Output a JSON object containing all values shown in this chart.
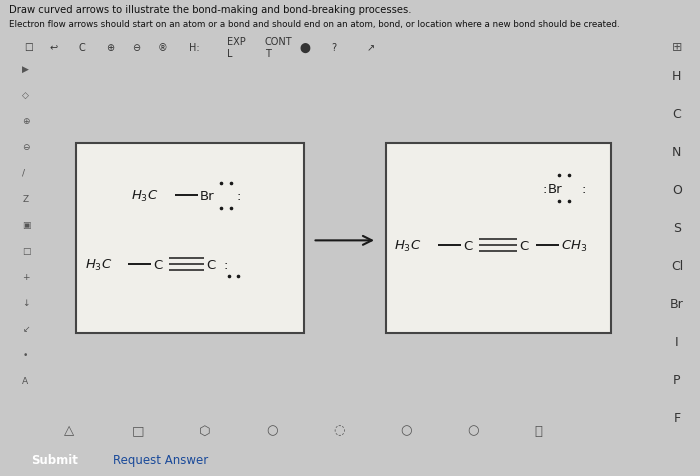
{
  "title_line1": "Draw curved arrows to illustrate the bond-making and bond-breaking processes.",
  "title_line2": "Electron flow arrows should start on an atom or a bond and should end on an atom, bond, or location where a new bond should be created.",
  "bg_outer": "#c8c8c8",
  "bg_main_panel": "#dcdcdc",
  "bg_canvas": "#f0efea",
  "box_edge": "#444444",
  "text_color": "#222222",
  "chem_color": "#1a1a1a",
  "arrow_color": "#222222",
  "sidebar_items": [
    "H",
    "C",
    "N",
    "O",
    "S",
    "Cl",
    "Br",
    "I",
    "P",
    "F"
  ],
  "button_submit_bg": "#1a4a9a",
  "button_submit_text": "Submit",
  "button_req_text": "Request Answer",
  "toolbar_icons": [
    "□",
    "↩",
    "C",
    "⊕",
    "⊖",
    "®",
    "H:",
    "EXP",
    "CONT",
    "●",
    "?",
    "↗"
  ],
  "left_tools": [
    "▶",
    "◇",
    "⊕",
    "⊖",
    "/",
    "Z",
    "▣",
    "□",
    "+",
    "↓",
    "↙",
    "•",
    "A"
  ],
  "bottom_shapes": [
    "△",
    "□",
    "⬡",
    "○",
    "◌",
    "○",
    "○",
    "⛰"
  ]
}
